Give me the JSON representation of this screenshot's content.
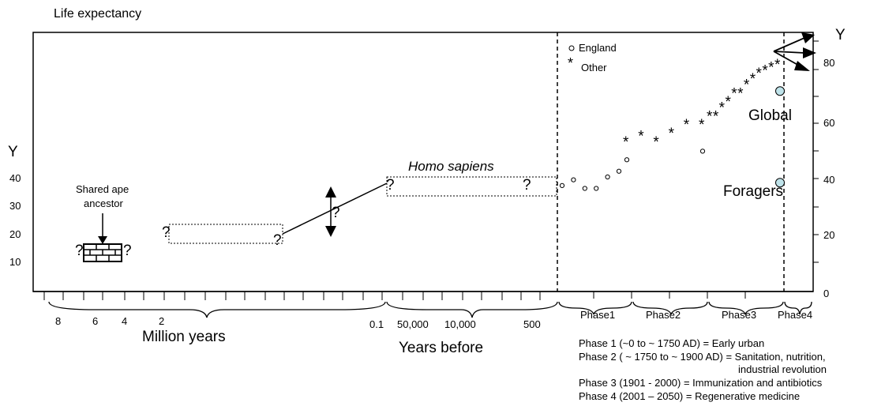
{
  "chart_data": {
    "type": "scatter",
    "title": "Life expectancy",
    "y_axis_left": {
      "label": "Y",
      "ticks": [
        "40",
        "30",
        "20",
        "10"
      ]
    },
    "y_axis_right": {
      "label": "Y",
      "ticks": [
        "80",
        "60",
        "40",
        "20",
        "0"
      ],
      "ylim": [
        0,
        90
      ]
    },
    "legend": {
      "position": "top-right",
      "entries": [
        {
          "marker": "o",
          "label": "England"
        },
        {
          "marker": "*",
          "label": "Other"
        }
      ]
    },
    "x_axis": {
      "tick_labels_million": [
        "8",
        "6",
        "4",
        "2"
      ],
      "tick_labels_years": [
        "0.1",
        "50,000",
        "10,000",
        "500"
      ],
      "segment_labels": [
        "Million years",
        "Years before"
      ],
      "phase_labels": [
        "Phase1",
        "Phase2",
        "Phase3",
        "Phase4"
      ]
    },
    "annotations": {
      "ape": "Shared ape ancestor",
      "homo": "Homo sapiens",
      "question": "?",
      "global": "Global",
      "foragers": "Foragers"
    },
    "prehistoric_ranges": [
      {
        "label": "Shared ape ancestor",
        "y_low": 12,
        "y_high": 16
      },
      {
        "label": "",
        "y_low": 18,
        "y_high": 22
      },
      {
        "label": "Homo sapiens",
        "y_low": 35,
        "y_high": 39
      }
    ],
    "series": [
      {
        "name": "England",
        "marker": "o",
        "points": [
          {
            "phase": 1,
            "y": 37
          },
          {
            "phase": 1,
            "y": 39
          },
          {
            "phase": 1,
            "y": 36
          },
          {
            "phase": 1,
            "y": 36
          },
          {
            "phase": 1,
            "y": 40
          },
          {
            "phase": 1,
            "y": 42
          },
          {
            "phase": 2,
            "y": 46
          },
          {
            "phase": 2,
            "y": 49
          }
        ]
      },
      {
        "name": "Other",
        "marker": "*",
        "points": [
          {
            "phase": 2,
            "y": 53
          },
          {
            "phase": 2,
            "y": 55
          },
          {
            "phase": 2,
            "y": 53
          },
          {
            "phase": 2,
            "y": 56
          },
          {
            "phase": 2,
            "y": 59
          },
          {
            "phase": 2,
            "y": 59
          },
          {
            "phase": 3,
            "y": 62
          },
          {
            "phase": 3,
            "y": 62
          },
          {
            "phase": 3,
            "y": 65
          },
          {
            "phase": 3,
            "y": 67
          },
          {
            "phase": 3,
            "y": 70
          },
          {
            "phase": 3,
            "y": 70
          },
          {
            "phase": 3,
            "y": 73
          },
          {
            "phase": 3,
            "y": 75
          },
          {
            "phase": 3,
            "y": 77
          },
          {
            "phase": 3,
            "y": 78
          },
          {
            "phase": 3,
            "y": 79
          },
          {
            "phase": 3,
            "y": 80
          }
        ]
      },
      {
        "name": "Global",
        "marker": "filled-circle",
        "points": [
          {
            "phase": 4,
            "y": 70
          }
        ]
      },
      {
        "name": "Foragers",
        "marker": "filled-circle",
        "points": [
          {
            "phase": 4,
            "y": 38
          }
        ]
      }
    ],
    "marker_color": "#bfe3ea",
    "phase_notes": [
      "Phase 1 (~0 to ~ 1750 AD) = Early urban",
      "Phase 2 ( ~ 1750 to ~ 1900 AD) = Sanitation, nutrition,",
      "industrial revolution",
      "Phase 3 (1901 - 2000) = Immunization and antibiotics",
      "Phase 4 (2001 – 2050) = Regenerative medicine"
    ]
  }
}
